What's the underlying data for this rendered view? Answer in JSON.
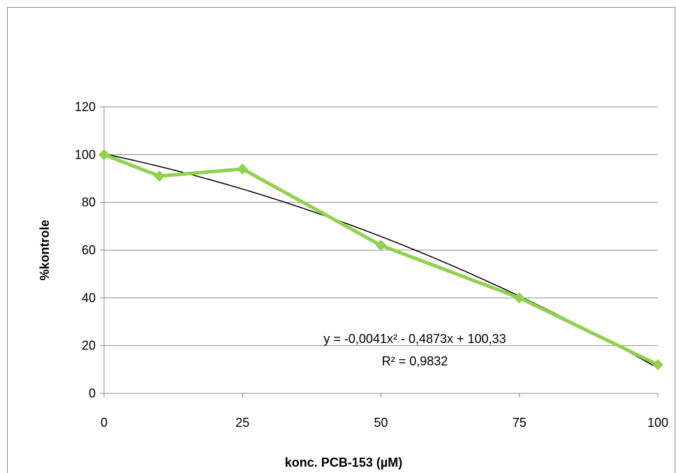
{
  "chart_data": {
    "type": "line",
    "title": "",
    "xlabel": "konc. PCB-153 (µM)",
    "ylabel": "%kontrole",
    "xlim": [
      0,
      100
    ],
    "ylim": [
      0,
      120
    ],
    "x_ticks": [
      0,
      25,
      50,
      75,
      100
    ],
    "y_ticks": [
      0,
      20,
      40,
      60,
      80,
      100,
      120
    ],
    "grid": "horizontal",
    "legend": "none",
    "series": [
      {
        "x": [
          0,
          10,
          25,
          50,
          75,
          100
        ],
        "values": [
          100,
          91,
          94,
          62,
          40,
          12
        ],
        "color": "#92d050",
        "marker": "diamond"
      }
    ],
    "trendline": {
      "type": "polynomial-2",
      "coefficients": {
        "a": -0.0041,
        "b": -0.4873,
        "c": 100.33
      },
      "color": "#000000",
      "equation_label": "y = -0,0041x² - 0,4873x + 100,33",
      "r2_label": "R² = 0,9832"
    }
  }
}
